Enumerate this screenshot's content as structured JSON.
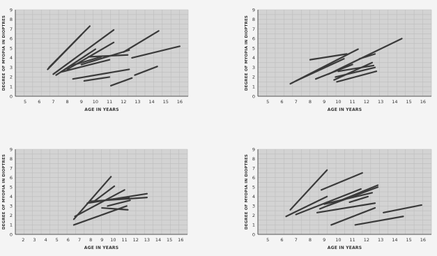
{
  "chart_data": [
    {
      "type": "line",
      "xlabel": "AGE IN YEARS",
      "ylabel": "DEGREE OF MYOPIA IN DIOPTRES",
      "x_ticks": [
        5,
        6,
        7,
        8,
        9,
        10,
        11,
        12,
        13,
        14,
        15,
        16
      ],
      "y_ticks": [
        0,
        1,
        2,
        3,
        4,
        5,
        6,
        7,
        8,
        9
      ],
      "xlim": [
        4.3,
        16.6
      ],
      "ylim": [
        0,
        9
      ],
      "grid": true,
      "series": [
        {
          "x": [
            6.6,
            9.0
          ],
          "y": [
            2.8,
            6.4
          ]
        },
        {
          "x": [
            6.7,
            9.6
          ],
          "y": [
            3.0,
            7.3
          ]
        },
        {
          "x": [
            7.0,
            11.3
          ],
          "y": [
            2.3,
            6.9
          ]
        },
        {
          "x": [
            7.2,
            10.0
          ],
          "y": [
            2.2,
            4.9
          ]
        },
        {
          "x": [
            7.5,
            11.0
          ],
          "y": [
            2.5,
            3.8
          ]
        },
        {
          "x": [
            8.0,
            11.3
          ],
          "y": [
            2.8,
            5.6
          ]
        },
        {
          "x": [
            8.3,
            10.4
          ],
          "y": [
            3.2,
            4.1
          ]
        },
        {
          "x": [
            9.0,
            12.4
          ],
          "y": [
            3.3,
            4.8
          ]
        },
        {
          "x": [
            9.5,
            12.3
          ],
          "y": [
            4.1,
            4.3
          ]
        },
        {
          "x": [
            12.0,
            14.5
          ],
          "y": [
            4.6,
            6.8
          ]
        },
        {
          "x": [
            12.6,
            16.0
          ],
          "y": [
            4.0,
            5.2
          ]
        },
        {
          "x": [
            8.4,
            12.4
          ],
          "y": [
            1.8,
            2.8
          ]
        },
        {
          "x": [
            9.2,
            11.0
          ],
          "y": [
            1.6,
            2.0
          ]
        },
        {
          "x": [
            11.1,
            12.6
          ],
          "y": [
            1.1,
            1.9
          ]
        },
        {
          "x": [
            12.8,
            14.4
          ],
          "y": [
            2.2,
            3.1
          ]
        }
      ]
    },
    {
      "type": "line",
      "xlabel": "AGE IN YEARS",
      "ylabel": "DEGREE OF MYOPIA IN DIOPTRES",
      "x_ticks": [
        5,
        6,
        7,
        8,
        9,
        10,
        11,
        12,
        13,
        14,
        15,
        16
      ],
      "y_ticks": [
        0,
        1,
        2,
        3,
        4,
        5,
        6,
        7,
        8,
        9
      ],
      "xlim": [
        4.3,
        16.6
      ],
      "ylim": [
        0,
        9
      ],
      "grid": true,
      "series": [
        {
          "x": [
            6.6,
            11.4
          ],
          "y": [
            1.3,
            4.9
          ]
        },
        {
          "x": [
            7.0,
            10.4
          ],
          "y": [
            1.6,
            3.9
          ]
        },
        {
          "x": [
            8.0,
            10.6
          ],
          "y": [
            3.8,
            4.4
          ]
        },
        {
          "x": [
            8.4,
            11.0
          ],
          "y": [
            1.8,
            3.3
          ]
        },
        {
          "x": [
            9.3,
            14.5
          ],
          "y": [
            2.3,
            6.0
          ]
        },
        {
          "x": [
            9.7,
            12.4
          ],
          "y": [
            1.7,
            3.5
          ]
        },
        {
          "x": [
            9.8,
            12.6
          ],
          "y": [
            2.0,
            3.0
          ]
        },
        {
          "x": [
            9.9,
            12.7
          ],
          "y": [
            1.5,
            2.6
          ]
        },
        {
          "x": [
            10.0,
            12.5
          ],
          "y": [
            2.6,
            3.2
          ]
        },
        {
          "x": [
            11.5,
            12.6
          ],
          "y": [
            3.9,
            4.4
          ]
        }
      ]
    },
    {
      "type": "line",
      "xlabel": "AGE IN YEARS",
      "ylabel": "DEGREE OF MYOPIA IN DIOPTRES",
      "x_ticks": [
        2,
        3,
        4,
        5,
        6,
        7,
        8,
        9,
        10,
        11,
        12,
        13,
        14,
        15,
        16
      ],
      "y_ticks": [
        0,
        1,
        2,
        3,
        4,
        5,
        6,
        7,
        8,
        9
      ],
      "xlim": [
        1.3,
        16.6
      ],
      "ylim": [
        0,
        9
      ],
      "grid": true,
      "series": [
        {
          "x": [
            6.5,
            9.8
          ],
          "y": [
            1.6,
            6.1
          ]
        },
        {
          "x": [
            6.6,
            11.0
          ],
          "y": [
            1.9,
            4.7
          ]
        },
        {
          "x": [
            6.5,
            11.2
          ],
          "y": [
            1.0,
            3.0
          ]
        },
        {
          "x": [
            7.7,
            13.0
          ],
          "y": [
            3.3,
            4.3
          ]
        },
        {
          "x": [
            8.0,
            13.0
          ],
          "y": [
            3.5,
            3.9
          ]
        },
        {
          "x": [
            8.2,
            10.1
          ],
          "y": [
            3.4,
            5.1
          ]
        },
        {
          "x": [
            9.5,
            11.5
          ],
          "y": [
            3.0,
            3.6
          ]
        },
        {
          "x": [
            9.0,
            11.3
          ],
          "y": [
            2.8,
            2.6
          ]
        },
        {
          "x": [
            9.8,
            11.4
          ],
          "y": [
            3.7,
            3.9
          ]
        }
      ]
    },
    {
      "type": "line",
      "xlabel": "AGE IN YEARS",
      "ylabel": "DEGREE OF MYOPIA IN DIOPTRES",
      "x_ticks": [
        5,
        6,
        7,
        8,
        9,
        10,
        11,
        12,
        13,
        14,
        15,
        16
      ],
      "y_ticks": [
        0,
        1,
        2,
        3,
        4,
        5,
        6,
        7,
        8,
        9
      ],
      "xlim": [
        4.3,
        16.6
      ],
      "ylim": [
        0,
        9
      ],
      "grid": true,
      "series": [
        {
          "x": [
            6.6,
            9.2
          ],
          "y": [
            2.6,
            6.8
          ]
        },
        {
          "x": [
            6.3,
            9.2
          ],
          "y": [
            1.9,
            4.0
          ]
        },
        {
          "x": [
            7.0,
            11.6
          ],
          "y": [
            2.1,
            4.8
          ]
        },
        {
          "x": [
            8.8,
            11.7
          ],
          "y": [
            4.7,
            6.5
          ]
        },
        {
          "x": [
            9.0,
            12.4
          ],
          "y": [
            3.2,
            4.4
          ]
        },
        {
          "x": [
            8.5,
            12.6
          ],
          "y": [
            2.3,
            3.3
          ]
        },
        {
          "x": [
            8.7,
            12.8
          ],
          "y": [
            2.7,
            5.2
          ]
        },
        {
          "x": [
            9.2,
            12.8
          ],
          "y": [
            3.0,
            5.0
          ]
        },
        {
          "x": [
            10.8,
            12.1
          ],
          "y": [
            3.4,
            4.0
          ]
        },
        {
          "x": [
            9.5,
            12.6
          ],
          "y": [
            1.0,
            2.8
          ]
        },
        {
          "x": [
            11.2,
            14.6
          ],
          "y": [
            1.0,
            1.9
          ]
        },
        {
          "x": [
            13.2,
            15.9
          ],
          "y": [
            2.3,
            3.1
          ]
        }
      ]
    }
  ]
}
